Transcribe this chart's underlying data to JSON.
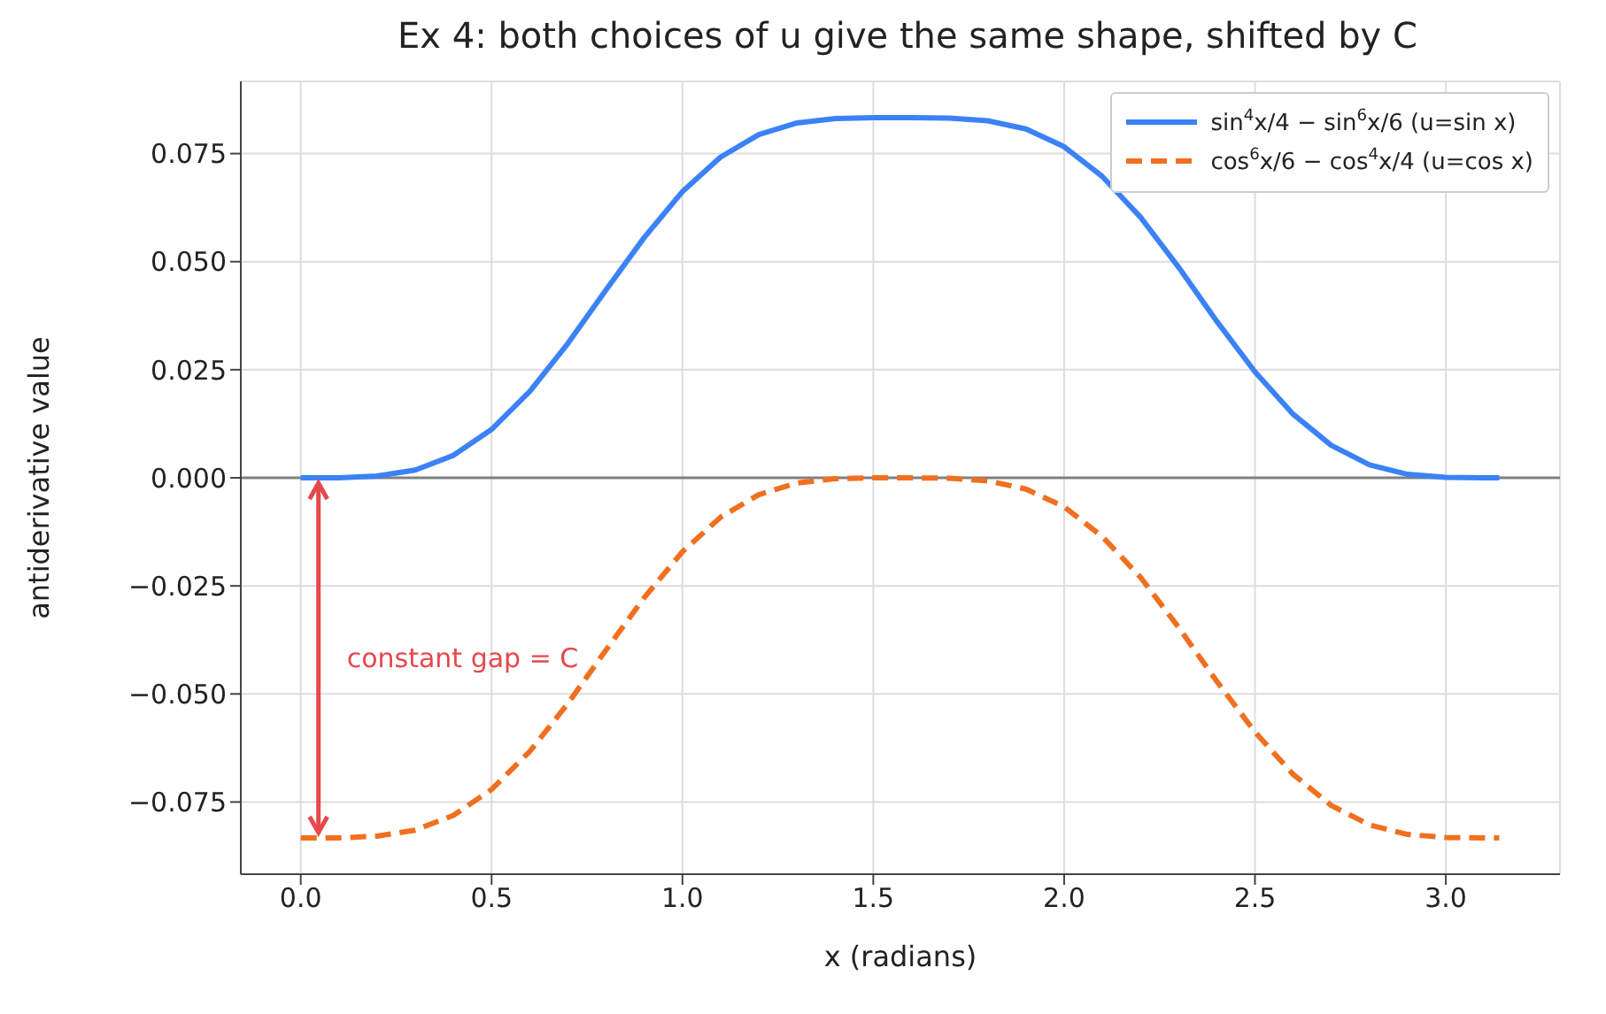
{
  "chart_data": {
    "type": "line",
    "title": "Ex 4: both choices of u give the same shape, shifted by C",
    "xlabel": "x  (radians)",
    "ylabel": "antiderivative value",
    "x": [
      0,
      0.1,
      0.2,
      0.3,
      0.4,
      0.5,
      0.6,
      0.7,
      0.8,
      0.9,
      1.0,
      1.1,
      1.2,
      1.3,
      1.4,
      1.5,
      1.6,
      1.7,
      1.8,
      1.9,
      2.0,
      2.1,
      2.2,
      2.3,
      2.4,
      2.5,
      2.6,
      2.7,
      2.8,
      2.9,
      3.0,
      3.1,
      3.14
    ],
    "series": [
      {
        "name": "sin$^{4}$x/4 − sin$^{6}$x/6  (u=sin x)",
        "color": "#3b82f6",
        "line_style": "solid",
        "values": [
          0,
          0,
          0.0004,
          0.0018,
          0.0052,
          0.0112,
          0.02,
          0.0311,
          0.0435,
          0.0556,
          0.0662,
          0.0742,
          0.0794,
          0.0821,
          0.0831,
          0.0833,
          0.0833,
          0.0832,
          0.0826,
          0.0807,
          0.0766,
          0.0697,
          0.0603,
          0.0487,
          0.0362,
          0.0245,
          0.0147,
          0.0075,
          0.003,
          0.0008,
          0.0001,
          0,
          0
        ]
      },
      {
        "name": "cos$^{6}$x/6 − cos$^{4}$x/4  (u=cos x)",
        "color": "#f07020",
        "line_style": "dashed",
        "values": [
          -0.0833,
          -0.0833,
          -0.0829,
          -0.0815,
          -0.0781,
          -0.0721,
          -0.0633,
          -0.0522,
          -0.0398,
          -0.0277,
          -0.0171,
          -0.0091,
          -0.0039,
          -0.0012,
          -0.0002,
          0,
          0,
          -0.0001,
          -0.0007,
          -0.0026,
          -0.0067,
          -0.0136,
          -0.023,
          -0.0346,
          -0.0471,
          -0.0588,
          -0.0686,
          -0.0758,
          -0.0803,
          -0.0825,
          -0.0832,
          -0.0833,
          -0.0833
        ]
      }
    ],
    "xlim": [
      -0.157,
      3.299
    ],
    "xticks": [
      {
        "value": 0,
        "label": "0.0"
      },
      {
        "value": 0.5,
        "label": "0.5"
      },
      {
        "value": 1,
        "label": "1.0"
      },
      {
        "value": 1.5,
        "label": "1.5"
      },
      {
        "value": 2,
        "label": "2.0"
      },
      {
        "value": 2.5,
        "label": "2.5"
      },
      {
        "value": 3,
        "label": "3.0"
      }
    ],
    "ylim": [
      -0.0917,
      0.0917
    ],
    "yticks": [
      {
        "value": -0.075,
        "label": "−0.075"
      },
      {
        "value": -0.05,
        "label": "−0.050"
      },
      {
        "value": -0.025,
        "label": "−0.025"
      },
      {
        "value": 0,
        "label": "0.000"
      },
      {
        "value": 0.025,
        "label": "0.025"
      },
      {
        "value": 0.05,
        "label": "0.050"
      },
      {
        "value": 0.075,
        "label": "0.075"
      }
    ],
    "ref_lines": [
      {
        "axis": "y",
        "value": 0,
        "color": "#808080"
      }
    ],
    "annotations": [
      "constant gap = C"
    ],
    "grid": true,
    "legend": "top right"
  }
}
